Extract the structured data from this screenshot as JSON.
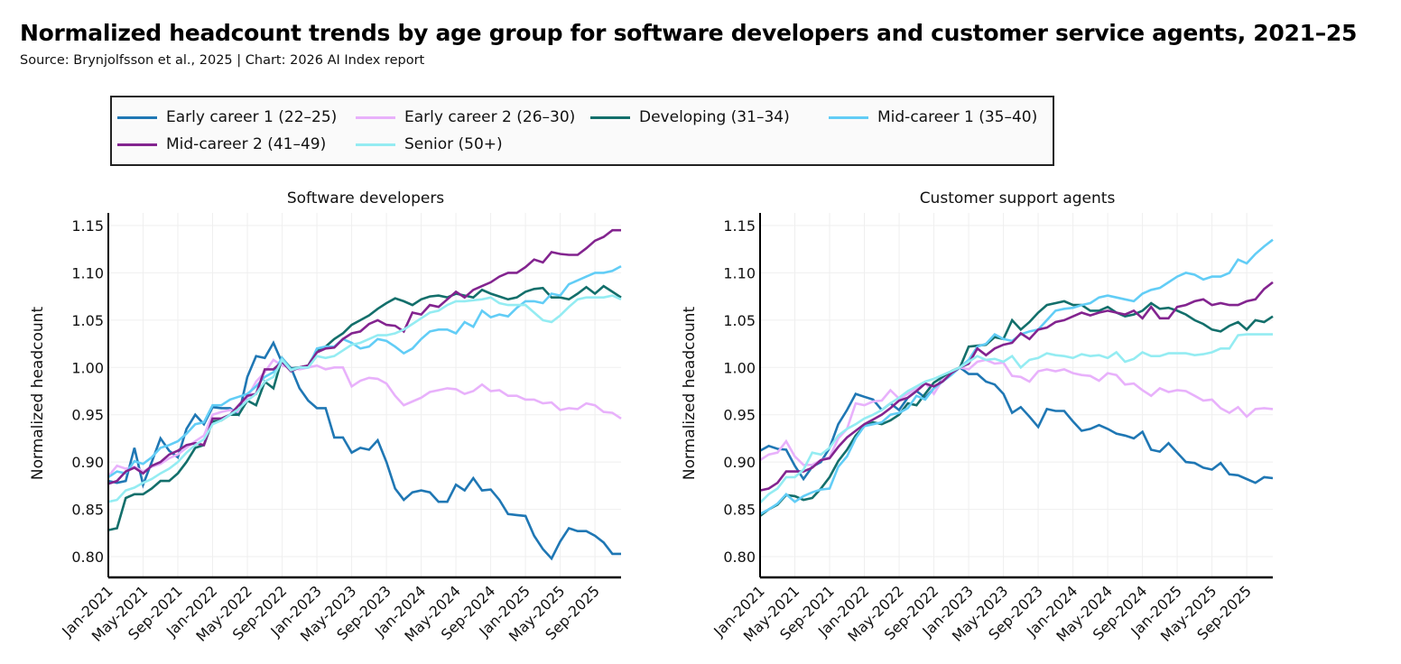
{
  "header": {
    "title": "Normalized headcount trends by age group for software developers and customer service agents, 2021–25",
    "subtitle": "Source: Brynjolfsson et al., 2025 | Chart: 2026 AI Index report"
  },
  "legend": [
    {
      "label": "Early career 1 (22–25)",
      "color": "#1f77b4"
    },
    {
      "label": "Early career 2 (26–30)",
      "color": "#e8b1fb"
    },
    {
      "label": "Developing (31–34)",
      "color": "#136f6b"
    },
    {
      "label": "Mid-career 1 (35–40)",
      "color": "#62cdf6"
    },
    {
      "label": "Mid-career 2 (41–49)",
      "color": "#83248f"
    },
    {
      "label": "Senior (50+)",
      "color": "#94ecf2"
    }
  ],
  "chart_data": [
    {
      "type": "line",
      "title": "Software developers",
      "xlabel": "",
      "ylabel": "Normalized headcount",
      "ylim": [
        0.78,
        1.165
      ],
      "yticks": [
        "0.80",
        "0.85",
        "0.90",
        "0.95",
        "1.00",
        "1.05",
        "1.10",
        "1.15"
      ],
      "xticks": [
        "Jan-2021",
        "May-2021",
        "Sep-2021",
        "Jan-2022",
        "May-2022",
        "Sep-2022",
        "Jan-2023",
        "May-2023",
        "Sep-2023",
        "Jan-2024",
        "May-2024",
        "Sep-2024",
        "Jan-2025",
        "May-2025",
        "Sep-2025"
      ],
      "x_start": "Jan-2021",
      "x_frequency": "monthly",
      "grid": true,
      "series": [
        {
          "name": "Early career 1 (22–25)",
          "values": [
            0.88,
            0.878,
            0.88,
            0.915,
            0.876,
            0.9,
            0.925,
            0.912,
            0.905,
            0.935,
            0.95,
            0.94,
            0.958,
            0.957,
            0.957,
            0.95,
            0.99,
            1.012,
            1.01,
            1.026,
            1.005,
            1.0,
            0.978,
            0.965,
            0.957,
            0.957,
            0.926,
            0.926,
            0.91,
            0.915,
            0.913,
            0.923,
            0.9,
            0.872,
            0.86,
            0.868,
            0.87,
            0.868,
            0.858,
            0.858,
            0.876,
            0.87,
            0.883,
            0.87,
            0.871,
            0.86,
            0.845,
            0.844,
            0.843,
            0.822,
            0.808,
            0.798,
            0.816,
            0.83,
            0.827,
            0.827,
            0.822,
            0.815,
            0.803,
            0.803
          ]
        },
        {
          "name": "Early career 2 (26–30)",
          "values": [
            0.885,
            0.896,
            0.893,
            0.895,
            0.89,
            0.895,
            0.898,
            0.904,
            0.908,
            0.915,
            0.922,
            0.928,
            0.95,
            0.953,
            0.955,
            0.953,
            0.968,
            0.985,
            0.995,
            1.008,
            1.002,
            1.0,
            0.998,
            1.0,
            1.002,
            0.998,
            1.0,
            1.0,
            0.98,
            0.986,
            0.989,
            0.988,
            0.983,
            0.97,
            0.96,
            0.964,
            0.968,
            0.974,
            0.976,
            0.978,
            0.977,
            0.972,
            0.975,
            0.982,
            0.975,
            0.976,
            0.97,
            0.97,
            0.966,
            0.966,
            0.962,
            0.963,
            0.955,
            0.957,
            0.956,
            0.962,
            0.96,
            0.953,
            0.952,
            0.946
          ]
        },
        {
          "name": "Developing (31–34)",
          "values": [
            0.828,
            0.83,
            0.862,
            0.866,
            0.866,
            0.872,
            0.88,
            0.88,
            0.888,
            0.9,
            0.915,
            0.918,
            0.943,
            0.944,
            0.95,
            0.95,
            0.965,
            0.96,
            0.985,
            0.978,
            1.01,
            0.999,
            1.0,
            1.002,
            1.018,
            1.022,
            1.03,
            1.036,
            1.045,
            1.05,
            1.055,
            1.062,
            1.068,
            1.073,
            1.07,
            1.066,
            1.072,
            1.075,
            1.076,
            1.074,
            1.078,
            1.076,
            1.074,
            1.082,
            1.078,
            1.075,
            1.072,
            1.074,
            1.08,
            1.083,
            1.084,
            1.074,
            1.074,
            1.072,
            1.078,
            1.085,
            1.078,
            1.086,
            1.08,
            1.074
          ]
        },
        {
          "name": "Mid-career 1 (35–40)",
          "values": [
            0.884,
            0.89,
            0.888,
            0.901,
            0.898,
            0.905,
            0.915,
            0.918,
            0.922,
            0.93,
            0.94,
            0.942,
            0.96,
            0.96,
            0.966,
            0.969,
            0.972,
            0.98,
            0.99,
            0.995,
            1.01,
            0.998,
            1.0,
            1.0,
            1.02,
            1.022,
            1.022,
            1.03,
            1.026,
            1.02,
            1.022,
            1.03,
            1.028,
            1.022,
            1.015,
            1.02,
            1.03,
            1.038,
            1.04,
            1.04,
            1.036,
            1.048,
            1.043,
            1.06,
            1.053,
            1.056,
            1.054,
            1.063,
            1.07,
            1.07,
            1.068,
            1.078,
            1.076,
            1.088,
            1.092,
            1.096,
            1.1,
            1.1,
            1.102,
            1.107
          ]
        },
        {
          "name": "Mid-career 2 (41–49)",
          "values": [
            0.877,
            0.88,
            0.89,
            0.894,
            0.888,
            0.896,
            0.9,
            0.908,
            0.912,
            0.918,
            0.92,
            0.918,
            0.946,
            0.946,
            0.95,
            0.96,
            0.97,
            0.972,
            0.998,
            0.998,
            1.006,
            0.996,
            1.0,
            1.002,
            1.016,
            1.02,
            1.021,
            1.03,
            1.036,
            1.038,
            1.046,
            1.05,
            1.045,
            1.044,
            1.038,
            1.058,
            1.056,
            1.066,
            1.064,
            1.072,
            1.08,
            1.074,
            1.082,
            1.086,
            1.09,
            1.096,
            1.1,
            1.1,
            1.106,
            1.114,
            1.111,
            1.122,
            1.12,
            1.119,
            1.119,
            1.126,
            1.134,
            1.138,
            1.145,
            1.145
          ]
        },
        {
          "name": "Senior (50+)",
          "values": [
            0.858,
            0.86,
            0.87,
            0.873,
            0.878,
            0.882,
            0.888,
            0.893,
            0.9,
            0.91,
            0.918,
            0.924,
            0.94,
            0.944,
            0.95,
            0.956,
            0.965,
            0.972,
            0.985,
            0.99,
            1.008,
            0.997,
            1.0,
            1.0,
            1.012,
            1.01,
            1.012,
            1.018,
            1.024,
            1.026,
            1.03,
            1.034,
            1.034,
            1.036,
            1.04,
            1.046,
            1.052,
            1.058,
            1.06,
            1.066,
            1.07,
            1.07,
            1.071,
            1.072,
            1.074,
            1.068,
            1.066,
            1.066,
            1.066,
            1.058,
            1.05,
            1.048,
            1.055,
            1.064,
            1.072,
            1.074,
            1.074,
            1.074,
            1.076,
            1.072
          ]
        }
      ]
    },
    {
      "type": "line",
      "title": "Customer support agents",
      "xlabel": "",
      "ylabel": "Normalized headcount",
      "ylim": [
        0.78,
        1.165
      ],
      "yticks": [
        "0.80",
        "0.85",
        "0.90",
        "0.95",
        "1.00",
        "1.05",
        "1.10",
        "1.15"
      ],
      "xticks": [
        "Jan-2021",
        "May-2021",
        "Sep-2021",
        "Jan-2022",
        "May-2022",
        "Sep-2022",
        "Jan-2023",
        "May-2023",
        "Sep-2023",
        "Jan-2024",
        "May-2024",
        "Sep-2024",
        "Jan-2025",
        "May-2025",
        "Sep-2025"
      ],
      "x_start": "Jan-2021",
      "x_frequency": "monthly",
      "grid": true,
      "series": [
        {
          "name": "Early career 1 (22–25)",
          "values": [
            0.912,
            0.917,
            0.914,
            0.913,
            0.896,
            0.882,
            0.895,
            0.9,
            0.915,
            0.94,
            0.955,
            0.972,
            0.969,
            0.966,
            0.955,
            0.962,
            0.955,
            0.968,
            0.975,
            0.968,
            0.978,
            0.987,
            0.996,
            1.0,
            0.993,
            0.993,
            0.985,
            0.982,
            0.972,
            0.952,
            0.958,
            0.948,
            0.937,
            0.956,
            0.954,
            0.954,
            0.943,
            0.933,
            0.935,
            0.939,
            0.935,
            0.93,
            0.928,
            0.925,
            0.932,
            0.913,
            0.911,
            0.92,
            0.91,
            0.9,
            0.899,
            0.894,
            0.892,
            0.899,
            0.887,
            0.886,
            0.882,
            0.878,
            0.884,
            0.883
          ]
        },
        {
          "name": "Early career 2 (26–30)",
          "values": [
            0.902,
            0.908,
            0.91,
            0.922,
            0.906,
            0.897,
            0.897,
            0.902,
            0.905,
            0.925,
            0.935,
            0.962,
            0.96,
            0.964,
            0.965,
            0.976,
            0.967,
            0.972,
            0.978,
            0.984,
            0.972,
            0.987,
            0.994,
            1.0,
            0.998,
            1.006,
            1.008,
            1.004,
            1.005,
            0.991,
            0.99,
            0.985,
            0.996,
            0.998,
            0.996,
            0.998,
            0.994,
            0.992,
            0.991,
            0.986,
            0.994,
            0.992,
            0.982,
            0.983,
            0.976,
            0.97,
            0.978,
            0.974,
            0.976,
            0.975,
            0.97,
            0.965,
            0.966,
            0.957,
            0.952,
            0.958,
            0.948,
            0.956,
            0.957,
            0.956
          ]
        },
        {
          "name": "Developing (31–34)",
          "values": [
            0.843,
            0.85,
            0.855,
            0.865,
            0.864,
            0.86,
            0.862,
            0.872,
            0.884,
            0.901,
            0.913,
            0.928,
            0.938,
            0.942,
            0.94,
            0.944,
            0.95,
            0.962,
            0.96,
            0.972,
            0.984,
            0.99,
            0.996,
            1.0,
            1.022,
            1.023,
            1.024,
            1.032,
            1.03,
            1.05,
            1.04,
            1.048,
            1.058,
            1.066,
            1.068,
            1.07,
            1.066,
            1.066,
            1.06,
            1.06,
            1.064,
            1.058,
            1.054,
            1.056,
            1.06,
            1.068,
            1.062,
            1.063,
            1.06,
            1.056,
            1.05,
            1.046,
            1.04,
            1.038,
            1.044,
            1.048,
            1.04,
            1.05,
            1.048,
            1.054
          ]
        },
        {
          "name": "Mid-career 1 (35–40)",
          "values": [
            0.845,
            0.85,
            0.856,
            0.866,
            0.858,
            0.864,
            0.868,
            0.871,
            0.872,
            0.895,
            0.906,
            0.925,
            0.938,
            0.94,
            0.942,
            0.95,
            0.952,
            0.957,
            0.97,
            0.966,
            0.978,
            0.985,
            0.992,
            1.0,
            1.008,
            1.022,
            1.025,
            1.035,
            1.03,
            1.028,
            1.035,
            1.038,
            1.04,
            1.05,
            1.06,
            1.062,
            1.063,
            1.066,
            1.068,
            1.074,
            1.076,
            1.074,
            1.072,
            1.07,
            1.078,
            1.082,
            1.084,
            1.09,
            1.096,
            1.1,
            1.098,
            1.093,
            1.096,
            1.096,
            1.1,
            1.114,
            1.11,
            1.12,
            1.128,
            1.135
          ]
        },
        {
          "name": "Mid-career 2 (41–49)",
          "values": [
            0.87,
            0.872,
            0.878,
            0.89,
            0.89,
            0.89,
            0.894,
            0.902,
            0.904,
            0.916,
            0.926,
            0.933,
            0.94,
            0.945,
            0.95,
            0.957,
            0.965,
            0.968,
            0.975,
            0.983,
            0.98,
            0.985,
            0.994,
            1.0,
            1.004,
            1.02,
            1.013,
            1.02,
            1.024,
            1.026,
            1.036,
            1.03,
            1.04,
            1.042,
            1.048,
            1.05,
            1.054,
            1.058,
            1.055,
            1.058,
            1.06,
            1.058,
            1.056,
            1.06,
            1.052,
            1.064,
            1.052,
            1.052,
            1.064,
            1.066,
            1.07,
            1.072,
            1.066,
            1.068,
            1.066,
            1.066,
            1.07,
            1.072,
            1.083,
            1.09
          ]
        },
        {
          "name": "Senior (50+)",
          "values": [
            0.857,
            0.866,
            0.872,
            0.884,
            0.884,
            0.892,
            0.91,
            0.908,
            0.915,
            0.928,
            0.935,
            0.94,
            0.946,
            0.95,
            0.955,
            0.962,
            0.968,
            0.975,
            0.98,
            0.985,
            0.988,
            0.992,
            0.996,
            1.0,
            1.006,
            1.012,
            1.008,
            1.009,
            1.006,
            1.012,
            1.0,
            1.008,
            1.01,
            1.015,
            1.013,
            1.012,
            1.01,
            1.014,
            1.012,
            1.013,
            1.01,
            1.016,
            1.006,
            1.009,
            1.016,
            1.012,
            1.012,
            1.015,
            1.015,
            1.015,
            1.013,
            1.014,
            1.016,
            1.02,
            1.02,
            1.034,
            1.035,
            1.035,
            1.035,
            1.035
          ]
        }
      ]
    }
  ]
}
